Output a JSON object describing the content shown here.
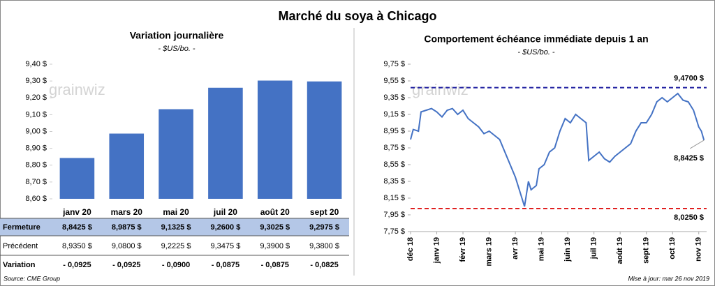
{
  "title": "Marché du soya à Chicago",
  "watermark": "grainwiz",
  "chart_data": [
    {
      "type": "bar",
      "title": "Variation journalière",
      "subtitle": "- $US/bo. -",
      "categories": [
        "janv 20",
        "mars 20",
        "mai 20",
        "juil 20",
        "août 20",
        "sept 20"
      ],
      "values": [
        8.8425,
        8.9875,
        9.1325,
        9.26,
        9.3025,
        9.2975
      ],
      "color": "#4472c4",
      "ylim": [
        8.6,
        9.4
      ],
      "yticks": [
        {
          "value": 8.6,
          "label": "8,60 $"
        },
        {
          "value": 8.7,
          "label": "8,70 $"
        },
        {
          "value": 8.8,
          "label": "8,80 $"
        },
        {
          "value": 8.9,
          "label": "8,90 $"
        },
        {
          "value": 9.0,
          "label": "9,00 $"
        },
        {
          "value": 9.1,
          "label": "9,10 $"
        },
        {
          "value": 9.2,
          "label": "9,20 $"
        },
        {
          "value": 9.3,
          "label": "9,30 $"
        },
        {
          "value": 9.4,
          "label": "9,40 $"
        }
      ]
    },
    {
      "type": "line",
      "title": "Comportement  échéance immédiate depuis 1 an",
      "subtitle": "- $US/bo. -",
      "color": "#4472c4",
      "x": [
        0,
        0.1,
        0.3,
        0.4,
        0.6,
        0.8,
        1.0,
        1.2,
        1.4,
        1.6,
        1.8,
        2.0,
        2.2,
        2.4,
        2.6,
        2.8,
        3.0,
        3.2,
        3.4,
        3.6,
        3.8,
        4.0,
        4.2,
        4.35,
        4.5,
        4.6,
        4.8,
        4.9,
        5.1,
        5.3,
        5.5,
        5.7,
        5.9,
        6.1,
        6.3,
        6.5,
        6.7,
        6.8,
        7.0,
        7.2,
        7.4,
        7.6,
        7.8,
        8.0,
        8.2,
        8.4,
        8.6,
        8.8,
        9.0,
        9.2,
        9.4,
        9.6,
        9.8,
        10.0,
        10.2,
        10.4,
        10.6,
        10.8,
        10.9,
        11.0,
        11.1,
        11.2
      ],
      "values": [
        8.85,
        8.97,
        8.95,
        9.18,
        9.2,
        9.22,
        9.18,
        9.12,
        9.2,
        9.22,
        9.15,
        9.2,
        9.1,
        9.05,
        9.0,
        8.92,
        8.95,
        8.9,
        8.85,
        8.7,
        8.55,
        8.4,
        8.2,
        8.05,
        8.35,
        8.25,
        8.3,
        8.5,
        8.55,
        8.7,
        8.75,
        8.95,
        9.1,
        9.05,
        9.15,
        9.1,
        9.05,
        8.6,
        8.65,
        8.7,
        8.62,
        8.58,
        8.65,
        8.7,
        8.75,
        8.8,
        8.95,
        9.05,
        9.05,
        9.15,
        9.3,
        9.35,
        9.3,
        9.35,
        9.4,
        9.32,
        9.3,
        9.2,
        9.1,
        9.0,
        8.95,
        8.8425
      ],
      "xlim": [
        0,
        11.3
      ],
      "xticks": [
        {
          "value": 0,
          "label": "déc 18"
        },
        {
          "value": 1,
          "label": "janv 19"
        },
        {
          "value": 2,
          "label": "févr 19"
        },
        {
          "value": 3,
          "label": "mars 19"
        },
        {
          "value": 4,
          "label": "avr 19"
        },
        {
          "value": 5,
          "label": "mai 19"
        },
        {
          "value": 6,
          "label": "juin 19"
        },
        {
          "value": 7,
          "label": "juil 19"
        },
        {
          "value": 8,
          "label": "août 19"
        },
        {
          "value": 9,
          "label": "sept 19"
        },
        {
          "value": 10,
          "label": "oct 19"
        },
        {
          "value": 11,
          "label": "nov 19"
        }
      ],
      "ylim": [
        7.75,
        9.75
      ],
      "yticks": [
        {
          "value": 7.75,
          "label": "7,75 $"
        },
        {
          "value": 7.95,
          "label": "7,95 $"
        },
        {
          "value": 8.15,
          "label": "8,15 $"
        },
        {
          "value": 8.35,
          "label": "8,35 $"
        },
        {
          "value": 8.55,
          "label": "8,55 $"
        },
        {
          "value": 8.75,
          "label": "8,75 $"
        },
        {
          "value": 8.95,
          "label": "8,95 $"
        },
        {
          "value": 9.15,
          "label": "9,15 $"
        },
        {
          "value": 9.35,
          "label": "9,35 $"
        },
        {
          "value": 9.55,
          "label": "9,55 $"
        },
        {
          "value": 9.75,
          "label": "9,75 $"
        }
      ],
      "reference_lines": [
        {
          "value": 9.47,
          "label": "9,4700 $",
          "color": "#1f1fa0"
        },
        {
          "value": 8.025,
          "label": "8,0250 $",
          "color": "#e02020"
        }
      ],
      "end_label": {
        "value": 8.8425,
        "label": "8,8425 $"
      }
    }
  ],
  "table": {
    "rows": [
      {
        "label": "Fermeture",
        "cells": [
          "8,8425  $",
          "8,9875  $",
          "9,1325  $",
          "9,2600  $",
          "9,3025  $",
          "9,2975  $"
        ]
      },
      {
        "label": "Précédent",
        "cells": [
          "8,9350  $",
          "9,0800  $",
          "9,2225  $",
          "9,3475  $",
          "9,3900  $",
          "9,3800  $"
        ]
      },
      {
        "label": "Variation",
        "cells": [
          "- 0,0925",
          "- 0,0925",
          "- 0,0900",
          "- 0,0875",
          "- 0,0875",
          "- 0,0825"
        ]
      }
    ]
  },
  "source": "Source: CME Group",
  "updated": "Mise à jour: mar 26 nov 2019"
}
